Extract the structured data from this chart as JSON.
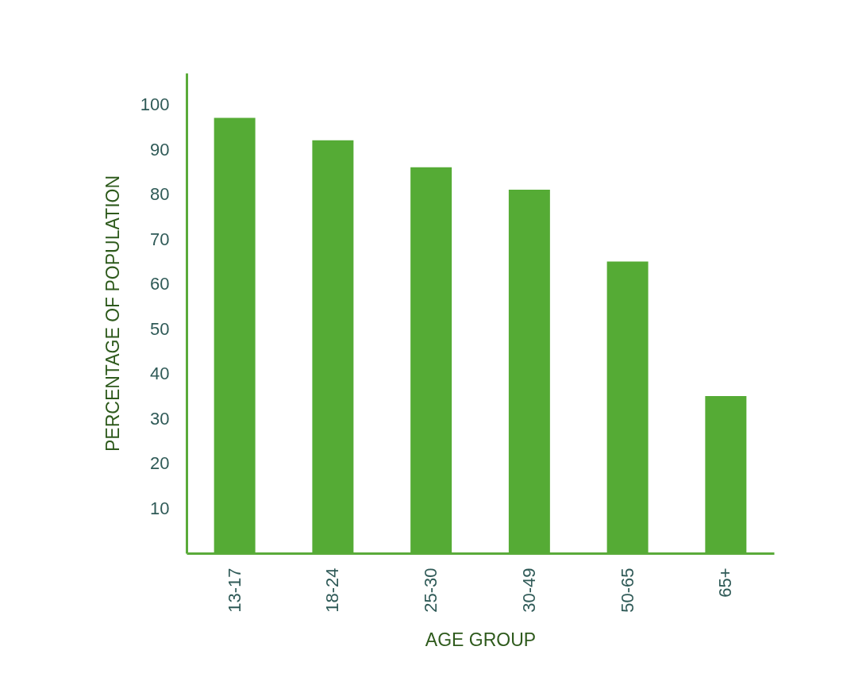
{
  "chart_data": {
    "type": "bar",
    "xlabel": "AGE GROUP",
    "ylabel": "PERCENTAGE OF POPULATION",
    "categories": [
      "13-17",
      "18-24",
      "25-30",
      "30-49",
      "50-65",
      "65+"
    ],
    "values": [
      97,
      92,
      86,
      81,
      65,
      35
    ],
    "color": "#55ab35",
    "ylim": [
      0,
      107
    ],
    "yticks": [
      10,
      20,
      30,
      40,
      50,
      60,
      70,
      80,
      90,
      100
    ],
    "grid": false
  }
}
